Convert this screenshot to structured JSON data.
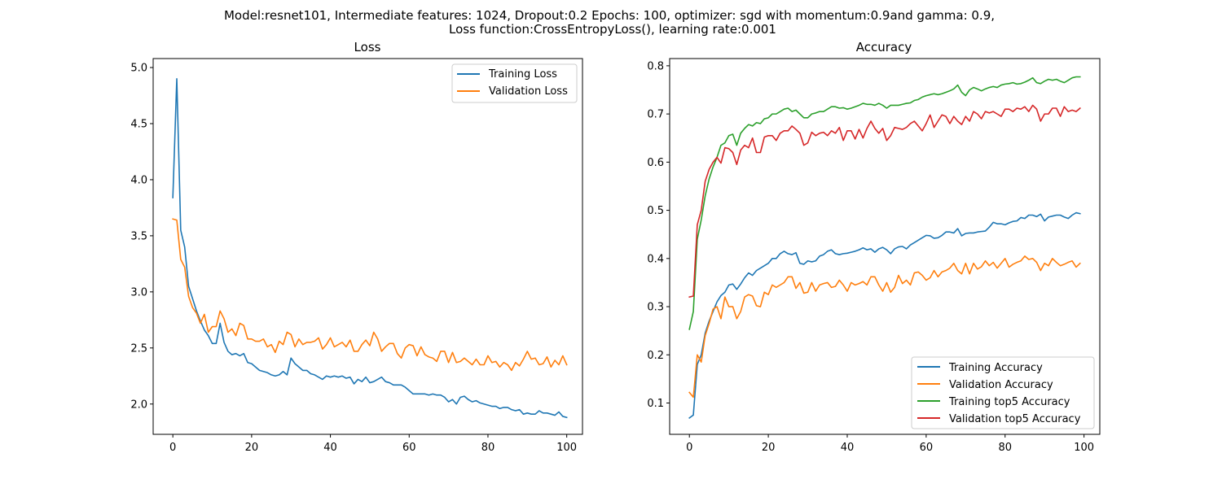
{
  "figure": {
    "suptitle_lines": [
      "Model:resnet101, Intermediate features: 1024, Dropout:0.2 Epochs: 100, optimizer: sgd with momentum:0.9and gamma: 0.9,",
      "Loss function:CrossEntropyLoss(), learning rate:0.001"
    ]
  },
  "colors": {
    "blue": "#1f77b4",
    "orange": "#ff7f0e",
    "green": "#2ca02c",
    "red": "#d62728"
  },
  "chart_data": [
    {
      "type": "line",
      "title": "Loss",
      "xlabel": "",
      "ylabel": "",
      "xlim": [
        -5,
        104
      ],
      "ylim": [
        1.73,
        5.08
      ],
      "xticks": [
        0,
        20,
        40,
        60,
        80,
        100
      ],
      "yticks": [
        2.0,
        2.5,
        3.0,
        3.5,
        4.0,
        4.5,
        5.0
      ],
      "ytick_decimals": 1,
      "grid": false,
      "legend": "upper right",
      "series": [
        {
          "name": "Training Loss",
          "color": "#1f77b4",
          "x_start": 0,
          "values": [
            3.84,
            4.9,
            3.55,
            3.4,
            3.05,
            2.94,
            2.83,
            2.74,
            2.66,
            2.61,
            2.54,
            2.54,
            2.72,
            2.55,
            2.47,
            2.44,
            2.45,
            2.43,
            2.45,
            2.37,
            2.36,
            2.33,
            2.3,
            2.29,
            2.28,
            2.26,
            2.25,
            2.26,
            2.29,
            2.26,
            2.41,
            2.36,
            2.33,
            2.3,
            2.3,
            2.27,
            2.26,
            2.24,
            2.22,
            2.25,
            2.24,
            2.25,
            2.24,
            2.25,
            2.23,
            2.24,
            2.18,
            2.22,
            2.2,
            2.24,
            2.19,
            2.2,
            2.22,
            2.24,
            2.2,
            2.19,
            2.17,
            2.17,
            2.17,
            2.15,
            2.12,
            2.09,
            2.09,
            2.09,
            2.09,
            2.08,
            2.09,
            2.08,
            2.08,
            2.06,
            2.02,
            2.04,
            2.0,
            2.06,
            2.07,
            2.04,
            2.02,
            2.03,
            2.01,
            2.0,
            1.99,
            1.98,
            1.98,
            1.96,
            1.97,
            1.97,
            1.95,
            1.94,
            1.95,
            1.91,
            1.92,
            1.91,
            1.91,
            1.94,
            1.92,
            1.92,
            1.91,
            1.9,
            1.93,
            1.89,
            1.88
          ]
        },
        {
          "name": "Validation Loss",
          "color": "#ff7f0e",
          "x_start": 0,
          "values": [
            3.65,
            3.64,
            3.29,
            3.22,
            2.96,
            2.86,
            2.81,
            2.72,
            2.8,
            2.64,
            2.69,
            2.69,
            2.83,
            2.76,
            2.64,
            2.67,
            2.61,
            2.72,
            2.7,
            2.58,
            2.58,
            2.56,
            2.56,
            2.58,
            2.51,
            2.53,
            2.46,
            2.56,
            2.53,
            2.64,
            2.62,
            2.51,
            2.58,
            2.53,
            2.55,
            2.55,
            2.56,
            2.59,
            2.49,
            2.53,
            2.59,
            2.51,
            2.53,
            2.55,
            2.51,
            2.57,
            2.47,
            2.47,
            2.53,
            2.57,
            2.52,
            2.64,
            2.58,
            2.47,
            2.51,
            2.54,
            2.54,
            2.45,
            2.41,
            2.5,
            2.53,
            2.52,
            2.43,
            2.51,
            2.44,
            2.42,
            2.41,
            2.38,
            2.47,
            2.47,
            2.37,
            2.46,
            2.37,
            2.38,
            2.41,
            2.38,
            2.35,
            2.4,
            2.35,
            2.35,
            2.43,
            2.37,
            2.38,
            2.33,
            2.37,
            2.35,
            2.3,
            2.37,
            2.34,
            2.4,
            2.47,
            2.4,
            2.41,
            2.35,
            2.36,
            2.42,
            2.33,
            2.39,
            2.35,
            2.43,
            2.35
          ]
        }
      ]
    },
    {
      "type": "line",
      "title": "Accuracy",
      "xlabel": "",
      "ylabel": "",
      "xlim": [
        -5,
        104
      ],
      "ylim": [
        0.035,
        0.815
      ],
      "xticks": [
        0,
        20,
        40,
        60,
        80,
        100
      ],
      "yticks": [
        0.1,
        0.2,
        0.3,
        0.4,
        0.5,
        0.6,
        0.7,
        0.8
      ],
      "ytick_decimals": 1,
      "grid": false,
      "legend": "lower right",
      "series": [
        {
          "name": "Training Accuracy",
          "color": "#1f77b4",
          "x_start": 0,
          "values": [
            0.069,
            0.075,
            0.18,
            0.2,
            0.245,
            0.27,
            0.29,
            0.31,
            0.323,
            0.33,
            0.345,
            0.347,
            0.336,
            0.347,
            0.36,
            0.37,
            0.365,
            0.375,
            0.38,
            0.385,
            0.39,
            0.4,
            0.4,
            0.41,
            0.415,
            0.41,
            0.408,
            0.412,
            0.39,
            0.388,
            0.395,
            0.393,
            0.395,
            0.405,
            0.408,
            0.415,
            0.418,
            0.41,
            0.408,
            0.41,
            0.411,
            0.413,
            0.415,
            0.418,
            0.422,
            0.418,
            0.42,
            0.413,
            0.42,
            0.423,
            0.418,
            0.41,
            0.42,
            0.424,
            0.425,
            0.42,
            0.428,
            0.433,
            0.438,
            0.443,
            0.448,
            0.447,
            0.442,
            0.443,
            0.448,
            0.455,
            0.455,
            0.453,
            0.462,
            0.447,
            0.452,
            0.453,
            0.453,
            0.455,
            0.456,
            0.457,
            0.465,
            0.475,
            0.472,
            0.472,
            0.47,
            0.474,
            0.477,
            0.478,
            0.485,
            0.483,
            0.49,
            0.49,
            0.487,
            0.492,
            0.478,
            0.486,
            0.488,
            0.49,
            0.49,
            0.486,
            0.483,
            0.49,
            0.495,
            0.493
          ]
        },
        {
          "name": "Validation Accuracy",
          "color": "#ff7f0e",
          "x_start": 0,
          "values": [
            0.122,
            0.112,
            0.2,
            0.185,
            0.24,
            0.265,
            0.295,
            0.3,
            0.275,
            0.32,
            0.3,
            0.3,
            0.275,
            0.29,
            0.32,
            0.325,
            0.322,
            0.302,
            0.3,
            0.33,
            0.325,
            0.345,
            0.34,
            0.345,
            0.35,
            0.362,
            0.362,
            0.338,
            0.35,
            0.328,
            0.33,
            0.35,
            0.332,
            0.345,
            0.348,
            0.35,
            0.34,
            0.342,
            0.355,
            0.345,
            0.332,
            0.35,
            0.345,
            0.348,
            0.352,
            0.345,
            0.362,
            0.362,
            0.345,
            0.332,
            0.35,
            0.33,
            0.34,
            0.365,
            0.348,
            0.355,
            0.345,
            0.37,
            0.372,
            0.365,
            0.355,
            0.36,
            0.375,
            0.362,
            0.372,
            0.375,
            0.38,
            0.39,
            0.375,
            0.368,
            0.39,
            0.368,
            0.39,
            0.378,
            0.383,
            0.395,
            0.385,
            0.392,
            0.38,
            0.39,
            0.4,
            0.382,
            0.388,
            0.392,
            0.395,
            0.405,
            0.398,
            0.4,
            0.392,
            0.375,
            0.39,
            0.385,
            0.4,
            0.392,
            0.385,
            0.388,
            0.392,
            0.395,
            0.382,
            0.39
          ]
        },
        {
          "name": "Training top5 Accuracy",
          "color": "#2ca02c",
          "x_start": 0,
          "values": [
            0.253,
            0.29,
            0.44,
            0.48,
            0.53,
            0.565,
            0.59,
            0.61,
            0.635,
            0.64,
            0.655,
            0.658,
            0.635,
            0.66,
            0.67,
            0.678,
            0.675,
            0.682,
            0.68,
            0.69,
            0.692,
            0.7,
            0.7,
            0.705,
            0.71,
            0.712,
            0.705,
            0.708,
            0.7,
            0.692,
            0.692,
            0.7,
            0.702,
            0.705,
            0.705,
            0.71,
            0.715,
            0.715,
            0.712,
            0.713,
            0.71,
            0.712,
            0.715,
            0.718,
            0.722,
            0.72,
            0.72,
            0.718,
            0.722,
            0.718,
            0.712,
            0.718,
            0.718,
            0.718,
            0.72,
            0.722,
            0.723,
            0.728,
            0.73,
            0.735,
            0.738,
            0.74,
            0.742,
            0.74,
            0.742,
            0.745,
            0.748,
            0.752,
            0.76,
            0.745,
            0.738,
            0.75,
            0.755,
            0.752,
            0.748,
            0.752,
            0.755,
            0.757,
            0.755,
            0.76,
            0.762,
            0.763,
            0.765,
            0.762,
            0.763,
            0.766,
            0.77,
            0.775,
            0.765,
            0.763,
            0.768,
            0.772,
            0.77,
            0.772,
            0.768,
            0.765,
            0.77,
            0.775,
            0.777,
            0.777
          ]
        },
        {
          "name": "Validation top5 Accuracy",
          "color": "#d62728",
          "x_start": 0,
          "values": [
            0.32,
            0.322,
            0.47,
            0.5,
            0.56,
            0.585,
            0.6,
            0.61,
            0.598,
            0.63,
            0.628,
            0.62,
            0.595,
            0.625,
            0.635,
            0.63,
            0.65,
            0.62,
            0.62,
            0.652,
            0.655,
            0.655,
            0.645,
            0.66,
            0.665,
            0.665,
            0.675,
            0.668,
            0.66,
            0.635,
            0.64,
            0.662,
            0.655,
            0.66,
            0.662,
            0.655,
            0.665,
            0.66,
            0.672,
            0.645,
            0.665,
            0.665,
            0.648,
            0.668,
            0.65,
            0.67,
            0.685,
            0.67,
            0.66,
            0.67,
            0.645,
            0.655,
            0.672,
            0.67,
            0.668,
            0.672,
            0.68,
            0.685,
            0.675,
            0.665,
            0.68,
            0.698,
            0.672,
            0.685,
            0.698,
            0.695,
            0.68,
            0.695,
            0.685,
            0.678,
            0.695,
            0.685,
            0.705,
            0.7,
            0.69,
            0.705,
            0.702,
            0.705,
            0.7,
            0.695,
            0.71,
            0.71,
            0.705,
            0.712,
            0.71,
            0.715,
            0.705,
            0.718,
            0.71,
            0.685,
            0.7,
            0.7,
            0.712,
            0.712,
            0.695,
            0.715,
            0.705,
            0.708,
            0.705,
            0.712
          ]
        }
      ]
    }
  ]
}
